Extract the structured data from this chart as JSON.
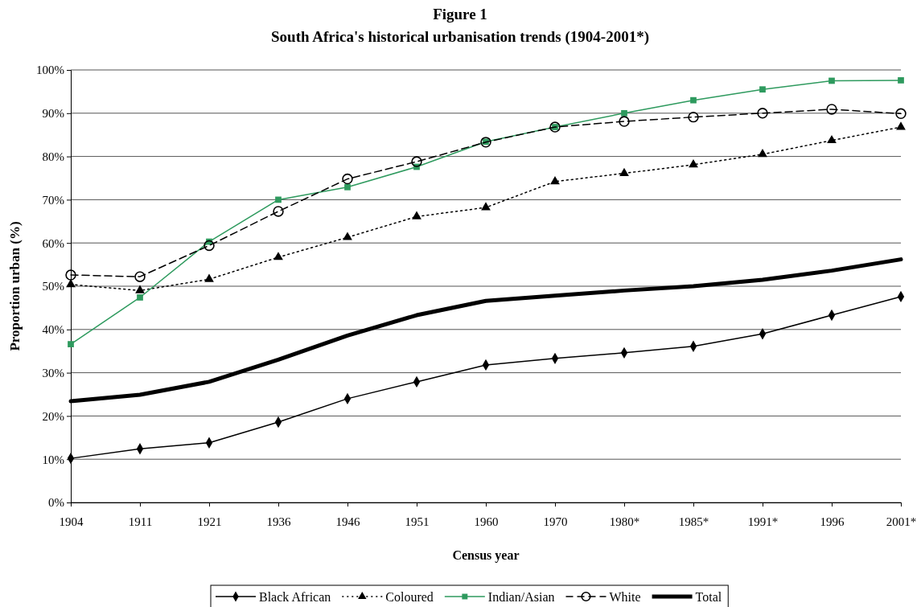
{
  "chart_data": {
    "type": "line",
    "title": "Figure 1",
    "subtitle": "South Africa's historical urbanisation trends (1904-2001*)",
    "xlabel": "Census year",
    "ylabel": "Proportion urban (%)",
    "categories": [
      "1904",
      "1911",
      "1921",
      "1936",
      "1946",
      "1951",
      "1960",
      "1970",
      "1980*",
      "1985*",
      "1991*",
      "1996",
      "2001*"
    ],
    "ylim": [
      0,
      100
    ],
    "yticks": [
      {
        "value": 0,
        "label": "0%"
      },
      {
        "value": 10,
        "label": "10%"
      },
      {
        "value": 20,
        "label": "20%"
      },
      {
        "value": 30,
        "label": "30%"
      },
      {
        "value": 40,
        "label": "40%"
      },
      {
        "value": 50,
        "label": "50%"
      },
      {
        "value": 60,
        "label": "60%"
      },
      {
        "value": 70,
        "label": "70%"
      },
      {
        "value": 80,
        "label": "80%"
      },
      {
        "value": 90,
        "label": "90%"
      },
      {
        "value": 100,
        "label": "100%"
      }
    ],
    "grid": "y",
    "legend": "bottom",
    "series": [
      {
        "name": "Black African",
        "color": "#000000",
        "marker": "diamond",
        "line_style": "solid",
        "values": [
          10.2,
          12.4,
          13.8,
          18.6,
          24,
          27.9,
          31.8,
          33.3,
          34.6,
          36.1,
          39,
          43.3,
          47.6
        ]
      },
      {
        "name": "Coloured",
        "color": "#000000",
        "marker": "triangle",
        "line_style": "dotted",
        "values": [
          50.4,
          49,
          51.6,
          56.7,
          61.3,
          66.1,
          68.2,
          74.2,
          76.1,
          78.1,
          80.5,
          83.7,
          86.8
        ]
      },
      {
        "name": "Indian/Asian",
        "color": "#2e9a5e",
        "marker": "square",
        "line_style": "solid",
        "values": [
          36.6,
          47.4,
          60.3,
          70,
          72.9,
          77.6,
          83.4,
          86.8,
          90,
          93,
          95.5,
          97.5,
          97.6
        ]
      },
      {
        "name": "White",
        "color": "#000000",
        "marker": "circle",
        "line_style": "dashed",
        "values": [
          52.6,
          52.2,
          59.4,
          67.3,
          74.8,
          78.8,
          83.3,
          86.8,
          88.1,
          89.1,
          90,
          90.9,
          89.9
        ]
      },
      {
        "name": "Total",
        "color": "#000000",
        "marker": "none",
        "line_style": "solid",
        "values": [
          23.4,
          24.9,
          27.9,
          33,
          38.6,
          43.3,
          46.6,
          47.8,
          49,
          50,
          51.5,
          53.6,
          56.2
        ]
      }
    ]
  }
}
